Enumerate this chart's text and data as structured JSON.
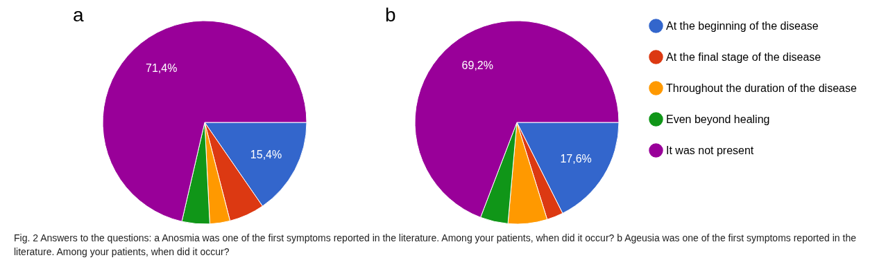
{
  "chart_data": [
    {
      "type": "pie",
      "title": "a",
      "categories": [
        null,
        null,
        null,
        null,
        null
      ],
      "values": [
        15.4,
        5.6,
        3.2,
        4.4,
        71.4
      ],
      "colors": [
        "#3366cc",
        "#dc3912",
        "#ff9900",
        "#109618",
        "#990099"
      ],
      "value_labels": [
        "15,4%",
        null,
        null,
        null,
        "71,4%"
      ],
      "legend": false,
      "annotations": [
        "Fig. 2 Answers to the questions: a Anosmia was one of the first symptoms reported in the literature. Among your patients, when did it occur? b Ageusia was one of the first symptoms reported in the literature. Among your patients, when did it occur?"
      ]
    },
    {
      "type": "pie",
      "title": "b",
      "categories": [
        "At the beginning of the disease",
        "At the final stage of the disease",
        "Throughout the duration of the disease",
        "Even beyond healing",
        "It was not present"
      ],
      "values": [
        17.6,
        2.6,
        6.2,
        4.4,
        69.2
      ],
      "colors": [
        "#3366cc",
        "#dc3912",
        "#ff9900",
        "#109618",
        "#990099"
      ],
      "value_labels": [
        "17,6%",
        null,
        null,
        null,
        "69,2%"
      ],
      "legend": "right"
    }
  ]
}
